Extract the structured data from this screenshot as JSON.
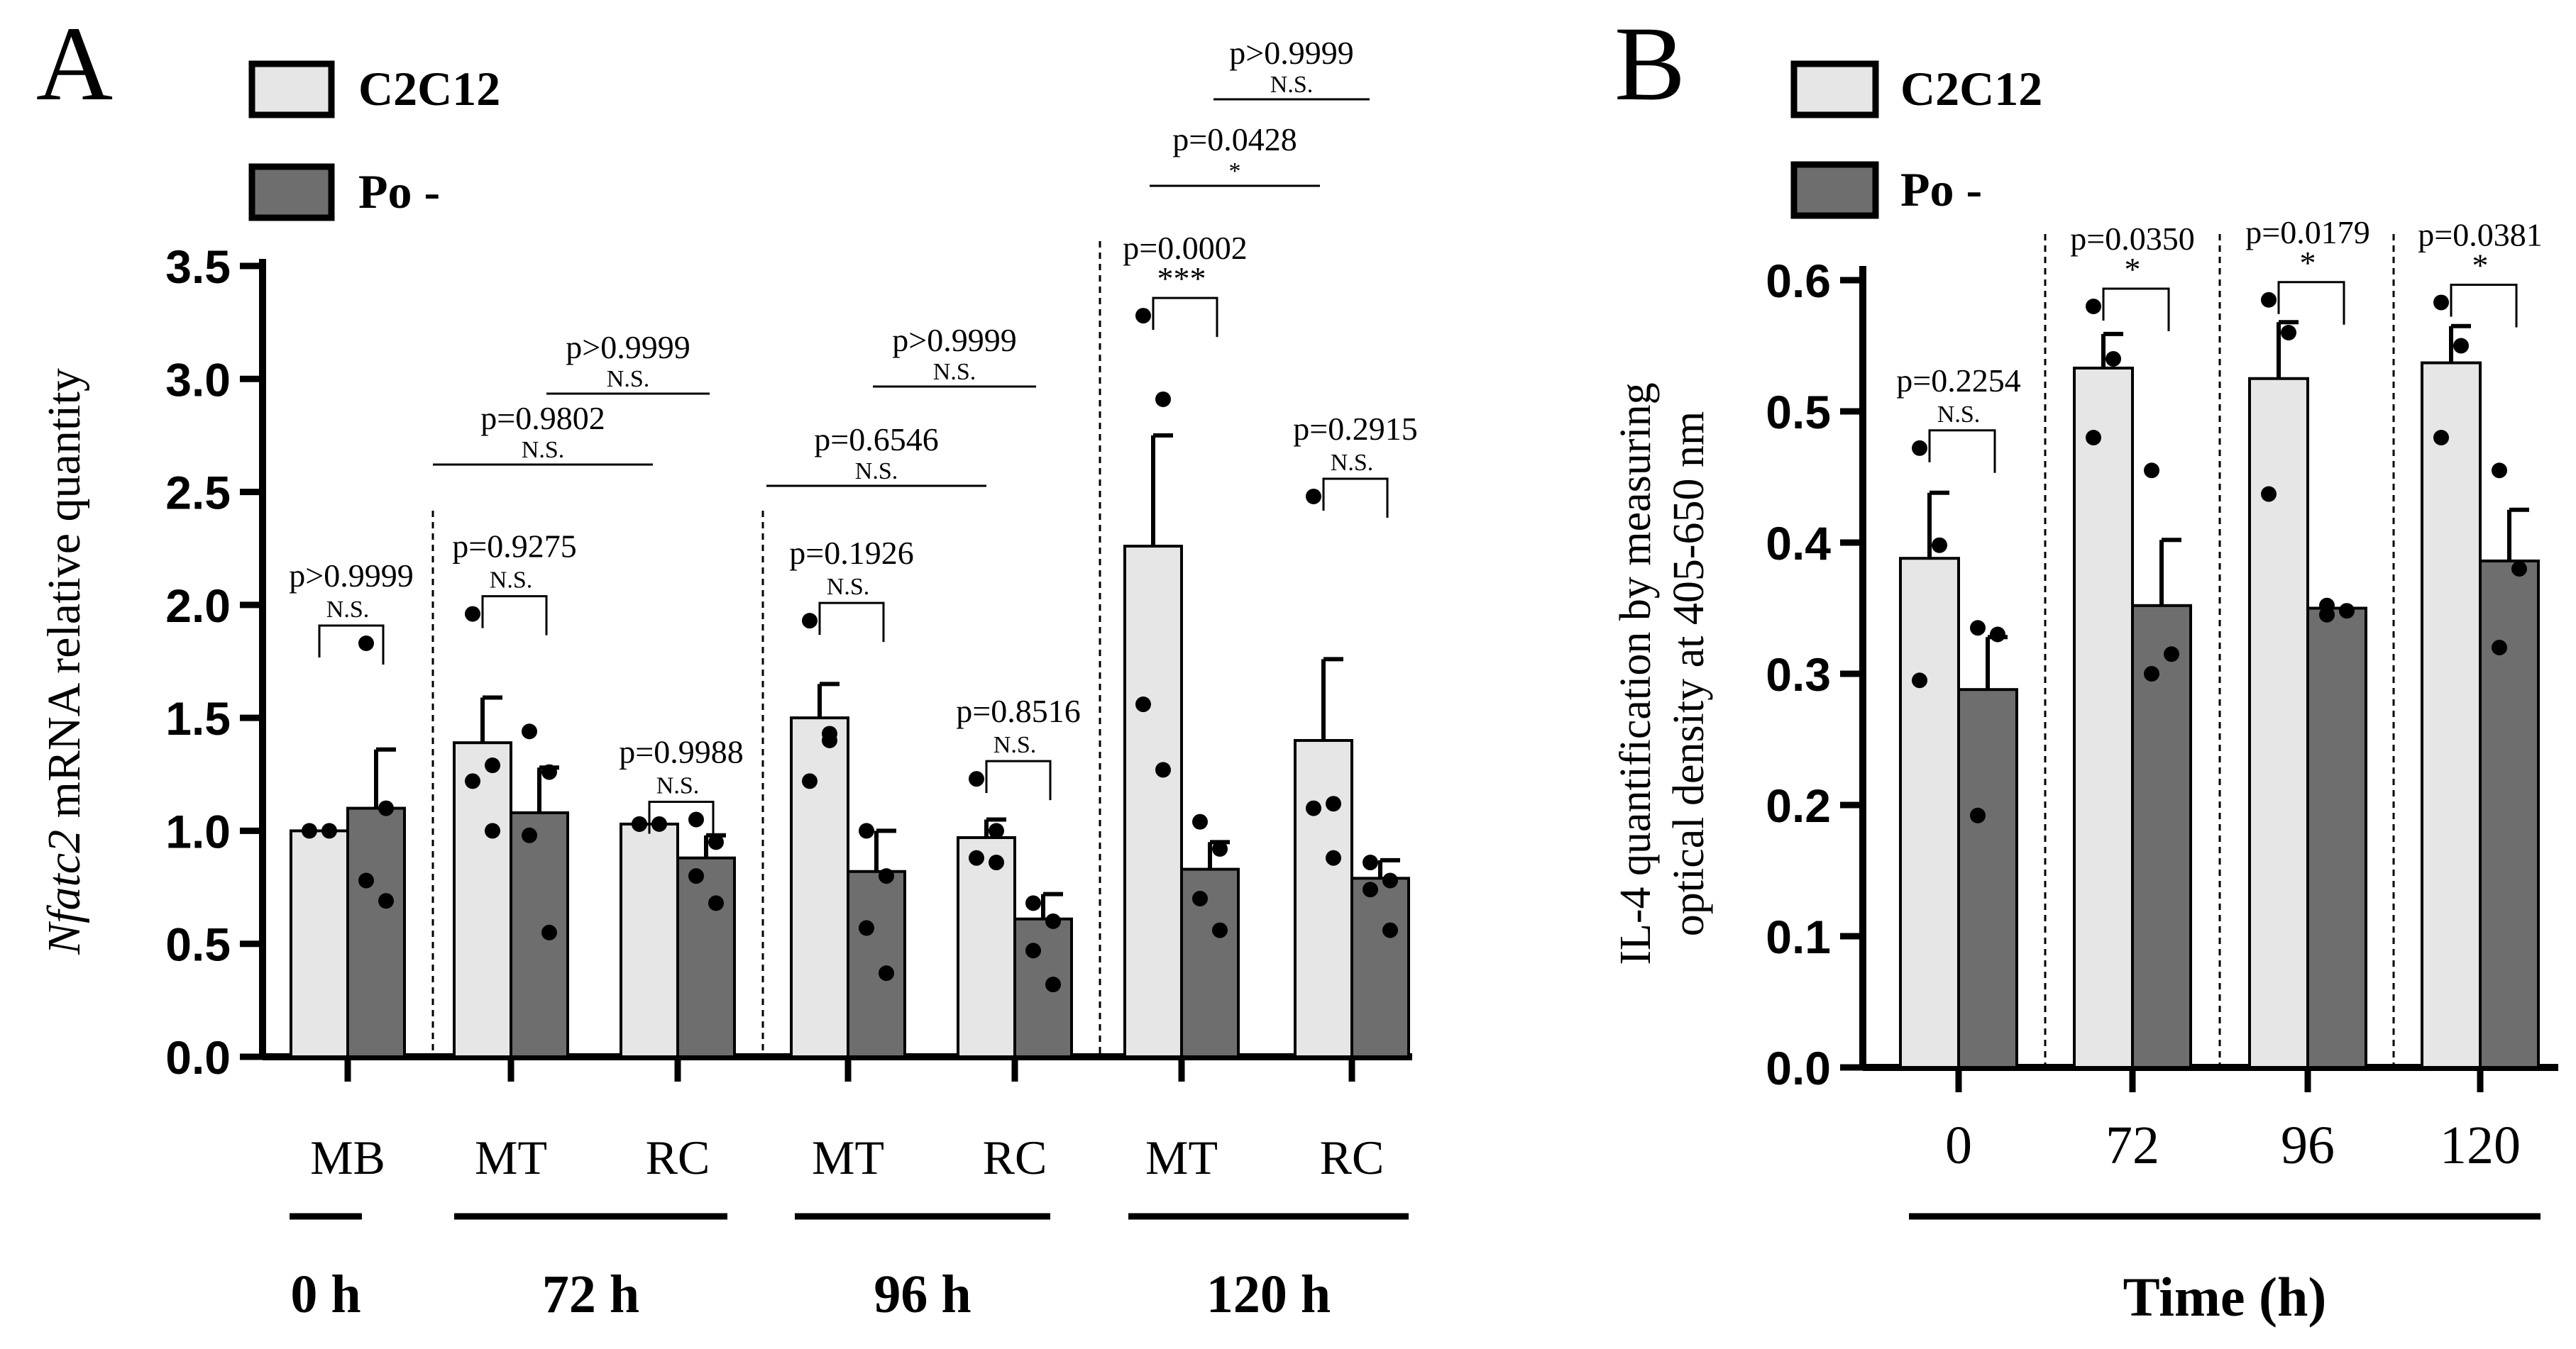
{
  "colors": {
    "c2c12": "#e6e6e6",
    "po": "#6e6e6e",
    "line": "#000000"
  },
  "chart_data": [
    {
      "panel": "A",
      "type": "bar",
      "ylabel_italic": "Nfatc2",
      "ylabel_rest": " mRNA relative quantity",
      "ylim": [
        0,
        3.5
      ],
      "yticks": [
        "0.0",
        "0.5",
        "1.0",
        "1.5",
        "2.0",
        "2.5",
        "3.0",
        "3.5"
      ],
      "legend": [
        "C2C12",
        "Po -"
      ],
      "groups": [
        {
          "label": "MB",
          "time": "0 h",
          "c2c12": 1.0,
          "po": 1.1,
          "c2c12_err": 0.0,
          "po_err": 0.26,
          "c2c12_pts": [
            1.0,
            1.0
          ],
          "po_pts": [
            1.83,
            0.69,
            0.78,
            1.1
          ],
          "p": "p>0.9999",
          "sig": "N.S."
        },
        {
          "label": "MT",
          "time": "72 h",
          "c2c12": 1.39,
          "po": 1.08,
          "c2c12_err": 0.2,
          "po_err": 0.2,
          "c2c12_pts": [
            1.96,
            1.29,
            1.22,
            1.0
          ],
          "po_pts": [
            1.44,
            1.26,
            0.98,
            0.55
          ],
          "p": "p=0.9275",
          "sig": "N.S."
        },
        {
          "label": "RC",
          "time": "72 h",
          "c2c12": 1.03,
          "po": 0.88,
          "c2c12_err": 0.0,
          "po_err": 0.1,
          "c2c12_pts": [
            1.03,
            1.03,
            1.03
          ],
          "po_pts": [
            1.05,
            0.95,
            0.8,
            0.68
          ],
          "p": "p=0.9988",
          "sig": "N.S."
        },
        {
          "label": "MT",
          "time": "96 h",
          "c2c12": 1.5,
          "po": 0.82,
          "c2c12_err": 0.15,
          "po_err": 0.18,
          "c2c12_pts": [
            1.93,
            1.43,
            1.22,
            1.4
          ],
          "po_pts": [
            1.0,
            0.8,
            0.57,
            0.37
          ],
          "p": "p=0.1926",
          "sig": "N.S."
        },
        {
          "label": "RC",
          "time": "96 h",
          "c2c12": 0.97,
          "po": 0.61,
          "c2c12_err": 0.08,
          "po_err": 0.11,
          "c2c12_pts": [
            1.23,
            1.0,
            0.88,
            0.86
          ],
          "po_pts": [
            0.68,
            0.6,
            0.47,
            0.32
          ],
          "p": "p=0.8516",
          "sig": "N.S."
        },
        {
          "label": "MT",
          "time": "120 h",
          "c2c12": 2.26,
          "po": 0.83,
          "c2c12_err": 0.49,
          "po_err": 0.12,
          "c2c12_pts": [
            3.28,
            2.91,
            1.56,
            1.27
          ],
          "po_pts": [
            1.04,
            0.92,
            0.7,
            0.56
          ],
          "p": "p=0.0002",
          "sig": "***"
        },
        {
          "label": "RC",
          "time": "120 h",
          "c2c12": 1.4,
          "po": 0.79,
          "c2c12_err": 0.36,
          "po_err": 0.08,
          "c2c12_pts": [
            2.48,
            1.12,
            1.1,
            0.88
          ],
          "po_pts": [
            0.86,
            0.78,
            0.74,
            0.56
          ],
          "p": "p=0.2915",
          "sig": "N.S."
        }
      ],
      "comparisons": [
        {
          "from": 1,
          "to": 2,
          "p": "p=0.9802",
          "sig": "N.S."
        },
        {
          "from": 1,
          "to": 3,
          "p": "p>0.9999",
          "sig": "N.S."
        },
        {
          "from": 3,
          "to": 4,
          "p": "p=0.6546",
          "sig": "N.S."
        },
        {
          "from": 3,
          "to": 5,
          "p": "p>0.9999",
          "sig": "N.S."
        },
        {
          "from": 5,
          "to": 6,
          "p": "p=0.0428",
          "sig": "*"
        },
        {
          "from": 5,
          "to": 7,
          "p": "p>0.9999",
          "sig": "N.S."
        }
      ],
      "time_labels": [
        "0 h",
        "72 h",
        "96 h",
        "120 h"
      ]
    },
    {
      "panel": "B",
      "type": "bar",
      "ylabel_line1": "IL-4 quantification by measuring",
      "ylabel_line2": "optical density at 405-650 nm",
      "xlabel": "Time (h)",
      "ylim": [
        0,
        0.6
      ],
      "yticks": [
        "0.0",
        "0.1",
        "0.2",
        "0.3",
        "0.4",
        "0.5",
        "0.6"
      ],
      "legend": [
        "C2C12",
        "Po -"
      ],
      "groups": [
        {
          "label": "0",
          "c2c12": 0.388,
          "po": 0.288,
          "c2c12_err": 0.05,
          "po_err": 0.04,
          "c2c12_pts": [
            0.472,
            0.398,
            0.295
          ],
          "po_pts": [
            0.335,
            0.33,
            0.192
          ],
          "p": "p=0.2254",
          "sig": "N.S."
        },
        {
          "label": "72",
          "c2c12": 0.533,
          "po": 0.352,
          "c2c12_err": 0.026,
          "po_err": 0.05,
          "c2c12_pts": [
            0.58,
            0.54,
            0.48
          ],
          "po_pts": [
            0.455,
            0.315,
            0.3
          ],
          "p": "p=0.0350",
          "sig": "*"
        },
        {
          "label": "96",
          "c2c12": 0.525,
          "po": 0.35,
          "c2c12_err": 0.043,
          "po_err": 0.003,
          "c2c12_pts": [
            0.585,
            0.56,
            0.437
          ],
          "po_pts": [
            0.352,
            0.348,
            0.345
          ],
          "p": "p=0.0179",
          "sig": "*"
        },
        {
          "label": "120",
          "c2c12": 0.537,
          "po": 0.386,
          "c2c12_err": 0.028,
          "po_err": 0.039,
          "c2c12_pts": [
            0.583,
            0.55,
            0.48
          ],
          "po_pts": [
            0.455,
            0.38,
            0.32
          ],
          "p": "p=0.0381",
          "sig": "*"
        }
      ]
    }
  ]
}
